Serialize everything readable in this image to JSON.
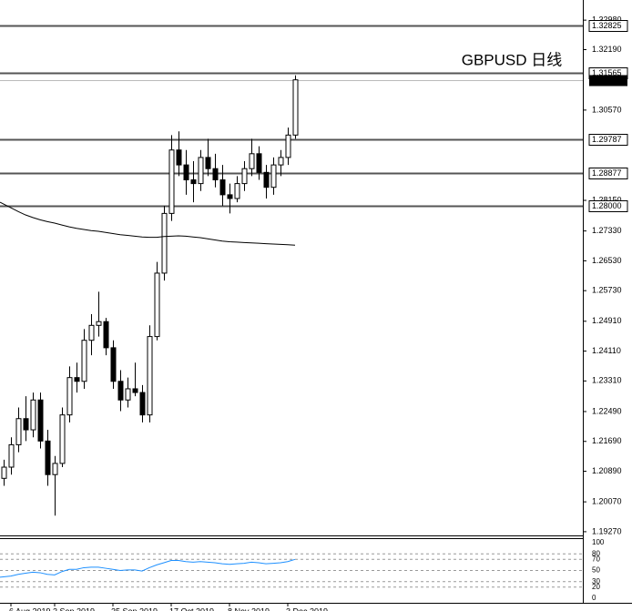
{
  "chart_data": {
    "type": "candlestick",
    "annotation": "GBPUSD 日线",
    "categories": [
      null,
      "6 Aug 2019",
      null,
      null,
      null,
      null,
      null,
      "2 Sep 2019",
      null,
      null,
      null,
      null,
      null,
      null,
      null,
      "25 Sep 2019",
      null,
      null,
      null,
      null,
      null,
      null,
      null,
      "17 Oct 2019",
      null,
      null,
      null,
      null,
      null,
      null,
      null,
      "8 Nov 2019",
      null,
      null,
      null,
      null,
      null,
      null,
      null,
      "3 Dec 2019",
      null
    ],
    "series": [
      {
        "name": "open",
        "values": [
          1.207,
          1.21,
          1.216,
          1.223,
          1.22,
          1.228,
          1.217,
          1.208,
          1.211,
          1.224,
          1.234,
          1.233,
          1.244,
          1.248,
          1.249,
          1.242,
          1.233,
          1.228,
          1.231,
          1.23,
          1.224,
          1.245,
          1.262,
          1.278,
          1.295,
          1.291,
          1.287,
          1.286,
          1.293,
          1.29,
          1.287,
          1.283,
          1.282,
          1.286,
          1.29,
          1.294,
          1.289,
          1.285,
          1.291,
          1.293,
          1.299
        ]
      },
      {
        "name": "high",
        "values": [
          1.212,
          1.218,
          1.226,
          1.229,
          1.23,
          1.23,
          1.22,
          1.213,
          1.226,
          1.237,
          1.238,
          1.247,
          1.251,
          1.257,
          1.25,
          1.244,
          1.236,
          1.234,
          1.238,
          1.232,
          1.248,
          1.265,
          1.28,
          1.299,
          1.3,
          1.295,
          1.292,
          1.295,
          1.298,
          1.294,
          1.291,
          1.286,
          1.288,
          1.292,
          1.298,
          1.296,
          1.291,
          1.293,
          1.295,
          1.301,
          1.315
        ]
      },
      {
        "name": "low",
        "values": [
          1.205,
          1.208,
          1.214,
          1.217,
          1.218,
          1.215,
          1.205,
          1.197,
          1.21,
          1.222,
          1.23,
          1.231,
          1.24,
          1.245,
          1.24,
          1.231,
          1.225,
          1.226,
          1.229,
          1.222,
          1.222,
          1.244,
          1.26,
          1.276,
          1.288,
          1.283,
          1.281,
          1.284,
          1.288,
          1.285,
          1.28,
          1.278,
          1.281,
          1.284,
          1.288,
          1.287,
          1.282,
          1.283,
          1.288,
          1.291,
          1.298
        ]
      },
      {
        "name": "close",
        "values": [
          1.21,
          1.216,
          1.223,
          1.22,
          1.228,
          1.217,
          1.208,
          1.211,
          1.224,
          1.234,
          1.233,
          1.244,
          1.248,
          1.249,
          1.242,
          1.233,
          1.228,
          1.231,
          1.23,
          1.224,
          1.245,
          1.262,
          1.278,
          1.295,
          1.291,
          1.287,
          1.286,
          1.293,
          1.29,
          1.287,
          1.283,
          1.282,
          1.286,
          1.29,
          1.294,
          1.289,
          1.285,
          1.291,
          1.293,
          1.299,
          1.3138
        ]
      }
    ],
    "ma": [
      1.281,
      1.2795,
      1.2785,
      1.2776,
      1.2769,
      1.2763,
      1.2758,
      1.2754,
      1.2749,
      1.2744,
      1.274,
      1.2737,
      1.2734,
      1.2732,
      1.2729,
      1.2726,
      1.2723,
      1.2721,
      1.2719,
      1.2717,
      1.2716,
      1.2716,
      1.2718,
      1.2719,
      1.272,
      1.2719,
      1.2717,
      1.2715,
      1.2712,
      1.2709,
      1.2706,
      1.2704,
      1.2703,
      1.2702,
      1.2701,
      1.27,
      1.2699,
      1.2698,
      1.2697,
      1.2696,
      1.2695
    ],
    "rsi": [
      38,
      40,
      43,
      45,
      47,
      46,
      43,
      42,
      48,
      52,
      52,
      55,
      56,
      56,
      54,
      52,
      50,
      51,
      51,
      49,
      55,
      60,
      64,
      68,
      68,
      66,
      65,
      66,
      65,
      64,
      62,
      61,
      62,
      63,
      65,
      64,
      62,
      63,
      64,
      66,
      70
    ],
    "ylim": [
      1.1917,
      1.3352
    ],
    "yticks": [
      {
        "value": 1.3298,
        "label": "1.32980"
      },
      {
        "value": 1.3219,
        "label": "1.32190"
      },
      {
        "value": 1.3057,
        "label": "1.30570"
      },
      {
        "value": 1.2815,
        "label": "1.28150"
      },
      {
        "value": 1.2733,
        "label": "1.27330"
      },
      {
        "value": 1.2653,
        "label": "1.26530"
      },
      {
        "value": 1.2573,
        "label": "1.25730"
      },
      {
        "value": 1.2491,
        "label": "1.24910"
      },
      {
        "value": 1.2411,
        "label": "1.24110"
      },
      {
        "value": 1.2331,
        "label": "1.23310"
      },
      {
        "value": 1.2249,
        "label": "1.22490"
      },
      {
        "value": 1.2169,
        "label": "1.21690"
      },
      {
        "value": 1.2089,
        "label": "1.20890"
      },
      {
        "value": 1.2007,
        "label": "1.20070"
      },
      {
        "value": 1.1927,
        "label": "1.19270"
      }
    ],
    "levels": [
      {
        "value": 1.32825,
        "label": "1.32825"
      },
      {
        "value": 1.31565,
        "label": "1.31565"
      },
      {
        "value": 1.29787,
        "label": "1.29787"
      },
      {
        "value": 1.28877,
        "label": "1.28877"
      },
      {
        "value": 1.28,
        "label": "1.28000"
      }
    ],
    "current": {
      "value": 1.31381,
      "label": "1.31381"
    },
    "rsi_ylim": [
      0,
      100
    ],
    "rsi_yticks": [
      100,
      80,
      70,
      50,
      30,
      20,
      0
    ],
    "up_color": "#ffffff",
    "down_color": "#000000",
    "ma_color": "#000000",
    "rsi_color": "#1e90ff",
    "annotation_color": "#e8242c"
  }
}
